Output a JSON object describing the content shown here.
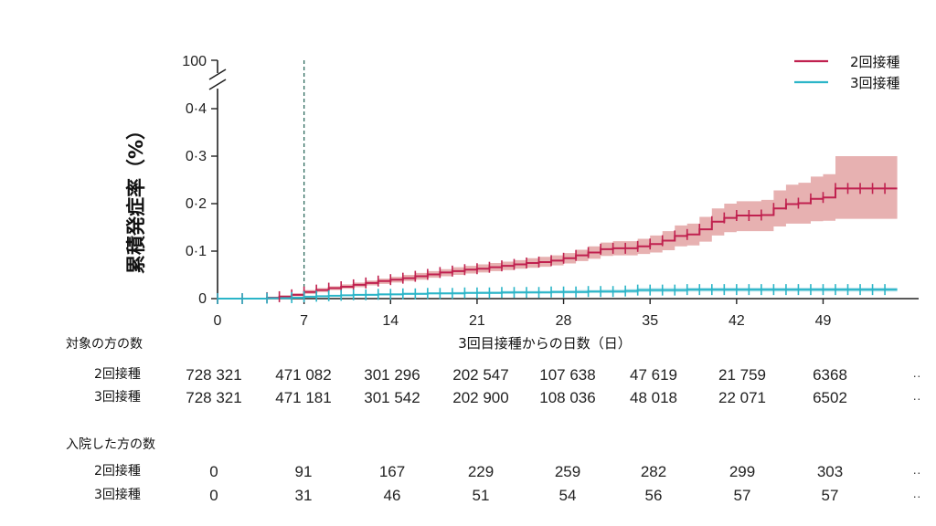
{
  "chart_data": {
    "type": "line",
    "ylabel": "累積発症率（%）",
    "xlabel": "3回目接種からの日数（日）",
    "x_ticks": [
      "0",
      "7",
      "14",
      "21",
      "28",
      "35",
      "42",
      "49"
    ],
    "y_ticks": [
      "0",
      "0·1",
      "0·2",
      "0·3",
      "0·4"
    ],
    "y_break_label": "100",
    "xlim": [
      0,
      55
    ],
    "ylim": [
      0,
      0.45
    ],
    "reference_line_x": 7,
    "legend_position": "top-right",
    "series": [
      {
        "name": "2回接種",
        "color": "#c0214f",
        "band_color": "#e3a3a3",
        "x": [
          0,
          2,
          4,
          5,
          6,
          7,
          8,
          9,
          10,
          11,
          12,
          13,
          14,
          15,
          16,
          17,
          18,
          19,
          20,
          21,
          22,
          23,
          24,
          25,
          26,
          27,
          28,
          29,
          30,
          31,
          32,
          33,
          34,
          35,
          36,
          37,
          38,
          39,
          40,
          41,
          42,
          43,
          44,
          45,
          46,
          47,
          48,
          49,
          50,
          51,
          52,
          53,
          54
        ],
        "y": [
          0,
          0,
          0.002,
          0.004,
          0.008,
          0.014,
          0.018,
          0.022,
          0.025,
          0.029,
          0.033,
          0.037,
          0.04,
          0.043,
          0.047,
          0.051,
          0.055,
          0.058,
          0.061,
          0.063,
          0.066,
          0.069,
          0.072,
          0.075,
          0.077,
          0.08,
          0.085,
          0.091,
          0.097,
          0.104,
          0.106,
          0.106,
          0.11,
          0.115,
          0.122,
          0.132,
          0.135,
          0.146,
          0.162,
          0.17,
          0.175,
          0.175,
          0.176,
          0.19,
          0.199,
          0.201,
          0.21,
          0.213,
          0.232,
          0.232,
          0.232,
          0.232,
          0.232
        ],
        "lower": [
          0,
          0,
          0,
          0.002,
          0.005,
          0.01,
          0.014,
          0.018,
          0.021,
          0.024,
          0.028,
          0.031,
          0.034,
          0.037,
          0.04,
          0.044,
          0.047,
          0.05,
          0.053,
          0.055,
          0.058,
          0.06,
          0.063,
          0.065,
          0.067,
          0.07,
          0.074,
          0.079,
          0.084,
          0.09,
          0.091,
          0.091,
          0.094,
          0.097,
          0.102,
          0.11,
          0.112,
          0.12,
          0.133,
          0.14,
          0.142,
          0.142,
          0.142,
          0.152,
          0.158,
          0.158,
          0.163,
          0.164,
          0.168,
          0.168,
          0.168,
          0.168,
          0.168
        ],
        "upper": [
          0.001,
          0.001,
          0.004,
          0.007,
          0.011,
          0.018,
          0.022,
          0.026,
          0.03,
          0.034,
          0.038,
          0.042,
          0.046,
          0.05,
          0.054,
          0.058,
          0.062,
          0.066,
          0.069,
          0.072,
          0.075,
          0.078,
          0.081,
          0.085,
          0.088,
          0.091,
          0.096,
          0.103,
          0.11,
          0.118,
          0.121,
          0.121,
          0.126,
          0.133,
          0.142,
          0.154,
          0.158,
          0.172,
          0.19,
          0.2,
          0.205,
          0.205,
          0.208,
          0.228,
          0.24,
          0.244,
          0.257,
          0.262,
          0.3,
          0.3,
          0.3,
          0.3,
          0.3
        ]
      },
      {
        "name": "3回接種",
        "color": "#2bb5c8",
        "band_color": "#a8dde6",
        "x": [
          0,
          2,
          4,
          6,
          7,
          8,
          9,
          10,
          11,
          12,
          13,
          14,
          15,
          16,
          17,
          18,
          19,
          20,
          21,
          22,
          23,
          24,
          25,
          26,
          27,
          28,
          29,
          30,
          31,
          32,
          33,
          34,
          35,
          36,
          37,
          38,
          39,
          40,
          41,
          42,
          43,
          44,
          45,
          46,
          47,
          48,
          49,
          50,
          51,
          52,
          53,
          54
        ],
        "y": [
          0,
          0,
          0.001,
          0.002,
          0.004,
          0.005,
          0.006,
          0.007,
          0.008,
          0.008,
          0.009,
          0.009,
          0.01,
          0.01,
          0.011,
          0.011,
          0.011,
          0.012,
          0.012,
          0.012,
          0.013,
          0.013,
          0.013,
          0.013,
          0.014,
          0.014,
          0.014,
          0.015,
          0.015,
          0.015,
          0.016,
          0.018,
          0.018,
          0.018,
          0.018,
          0.019,
          0.019,
          0.019,
          0.019,
          0.019,
          0.019,
          0.019,
          0.019,
          0.019,
          0.019,
          0.019,
          0.019,
          0.019,
          0.019,
          0.019,
          0.019,
          0.019
        ],
        "lower": [
          0,
          0,
          0,
          0.001,
          0.003,
          0.004,
          0.005,
          0.006,
          0.006,
          0.007,
          0.007,
          0.008,
          0.008,
          0.008,
          0.009,
          0.009,
          0.009,
          0.01,
          0.01,
          0.01,
          0.01,
          0.011,
          0.011,
          0.011,
          0.011,
          0.011,
          0.011,
          0.012,
          0.012,
          0.012,
          0.012,
          0.014,
          0.014,
          0.014,
          0.014,
          0.015,
          0.015,
          0.015,
          0.015,
          0.015,
          0.015,
          0.015,
          0.015,
          0.015,
          0.015,
          0.015,
          0.015,
          0.015,
          0.015,
          0.015,
          0.015,
          0.015
        ],
        "upper": [
          0.001,
          0.001,
          0.002,
          0.003,
          0.005,
          0.006,
          0.007,
          0.008,
          0.009,
          0.01,
          0.011,
          0.011,
          0.012,
          0.012,
          0.013,
          0.013,
          0.014,
          0.014,
          0.015,
          0.015,
          0.016,
          0.016,
          0.016,
          0.016,
          0.017,
          0.017,
          0.018,
          0.018,
          0.019,
          0.019,
          0.02,
          0.022,
          0.022,
          0.022,
          0.022,
          0.023,
          0.023,
          0.023,
          0.023,
          0.023,
          0.023,
          0.023,
          0.023,
          0.023,
          0.023,
          0.023,
          0.023,
          0.023,
          0.023,
          0.023,
          0.023,
          0.023
        ]
      }
    ]
  },
  "tables": [
    {
      "title": "対象の方の数",
      "rows": [
        {
          "label": "2回接種",
          "values": [
            "728 321",
            "471 082",
            "301 296",
            "202 547",
            "107 638",
            "47 619",
            "21 759",
            "6368",
            "··"
          ]
        },
        {
          "label": "3回接種",
          "values": [
            "728 321",
            "471 181",
            "301 542",
            "202 900",
            "108 036",
            "48 018",
            "22 071",
            "6502",
            "··"
          ]
        }
      ]
    },
    {
      "title": "入院した方の数",
      "rows": [
        {
          "label": "2回接種",
          "values": [
            "0",
            "91",
            "167",
            "229",
            "259",
            "282",
            "299",
            "303",
            "··"
          ]
        },
        {
          "label": "3回接種",
          "values": [
            "0",
            "31",
            "46",
            "51",
            "54",
            "56",
            "57",
            "57",
            "··"
          ]
        }
      ]
    }
  ]
}
